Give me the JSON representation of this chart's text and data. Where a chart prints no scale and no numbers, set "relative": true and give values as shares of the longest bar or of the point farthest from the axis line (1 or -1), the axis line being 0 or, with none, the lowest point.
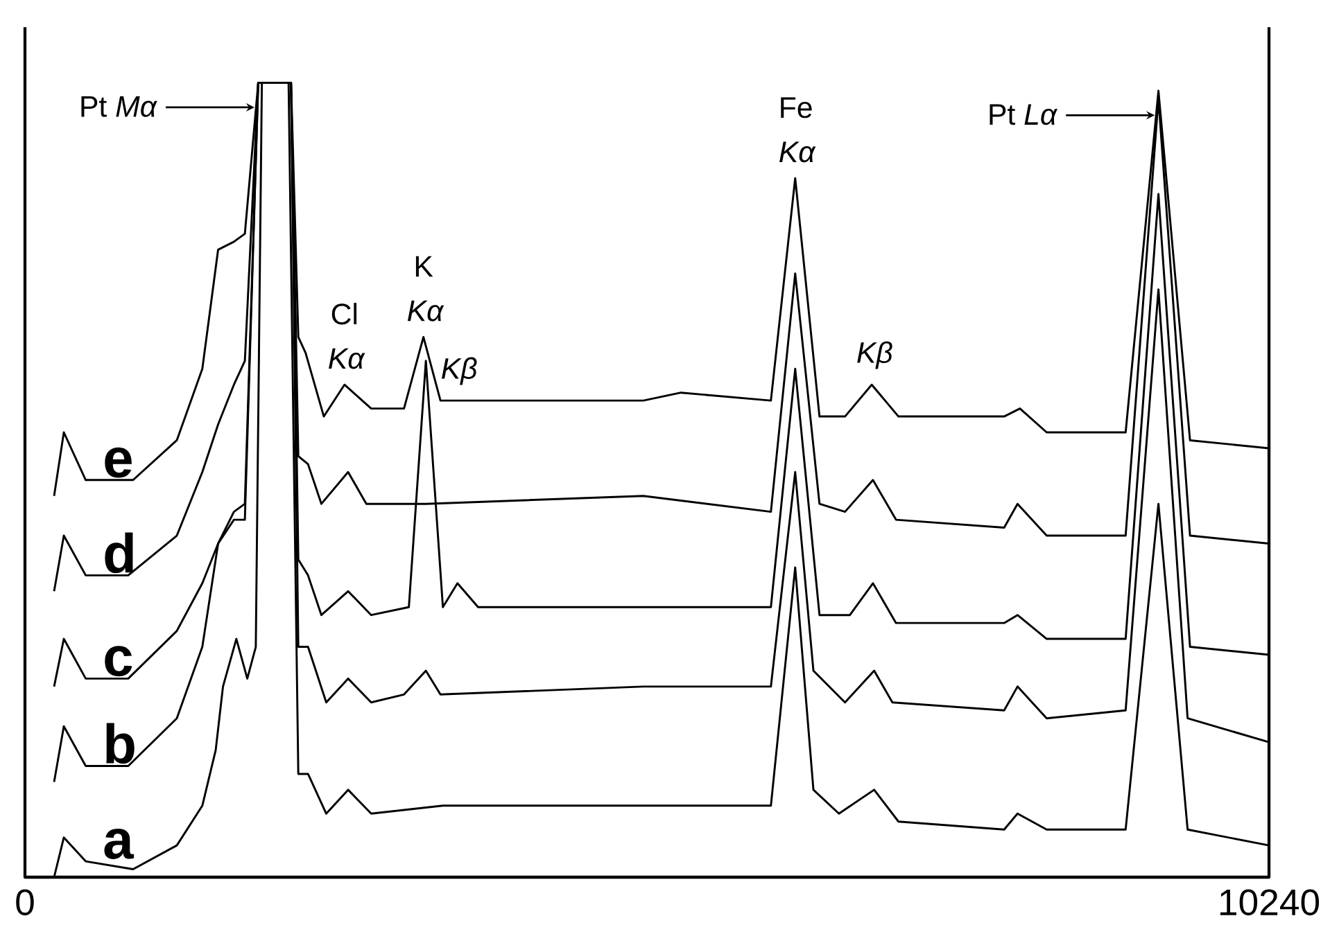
{
  "chart_data": {
    "type": "line",
    "relative": true,
    "xlim": [
      0,
      10240
    ],
    "xticks": [
      0,
      10240
    ],
    "series": [
      {
        "name": "a",
        "color": "#000000",
        "x": [
          240,
          320,
          500,
          890,
          1250,
          1460,
          1570,
          1630,
          1740,
          1830,
          1900,
          1950,
          2170,
          2250,
          2330,
          2480,
          2660,
          2850,
          3440,
          4430,
          5090,
          6140,
          6340,
          6490,
          6700,
          6990,
          7190,
          8060,
          8170,
          8410,
          9060,
          9330,
          9570,
          10240
        ],
        "values": [
          0.0,
          0.05,
          0.02,
          0.01,
          0.04,
          0.09,
          0.16,
          0.24,
          0.3,
          0.25,
          0.29,
          1.0,
          1.0,
          0.13,
          0.13,
          0.08,
          0.11,
          0.08,
          0.09,
          0.09,
          0.09,
          0.09,
          0.39,
          0.11,
          0.08,
          0.11,
          0.07,
          0.06,
          0.08,
          0.06,
          0.06,
          0.47,
          0.06,
          0.04
        ]
      },
      {
        "name": "b",
        "color": "#000000",
        "x": [
          240,
          320,
          500,
          850,
          1250,
          1460,
          1590,
          1720,
          1810,
          1920,
          2190,
          2250,
          2330,
          2480,
          2660,
          2850,
          3120,
          3300,
          3420,
          5090,
          6140,
          6340,
          6490,
          6750,
          6990,
          7140,
          8060,
          8170,
          8410,
          9060,
          9330,
          9570,
          10240
        ],
        "values": [
          0.12,
          0.19,
          0.14,
          0.14,
          0.2,
          0.29,
          0.42,
          0.45,
          0.45,
          1.0,
          1.0,
          0.29,
          0.29,
          0.22,
          0.25,
          0.22,
          0.23,
          0.26,
          0.23,
          0.24,
          0.24,
          0.51,
          0.26,
          0.22,
          0.26,
          0.22,
          0.21,
          0.24,
          0.2,
          0.21,
          0.74,
          0.2,
          0.17
        ]
      },
      {
        "name": "c",
        "color": "#000000",
        "x": [
          240,
          320,
          500,
          850,
          1250,
          1460,
          1590,
          1720,
          1810,
          1920,
          2190,
          2250,
          2330,
          2440,
          2660,
          2850,
          3160,
          3300,
          3440,
          3560,
          3730,
          5090,
          6140,
          6340,
          6540,
          6790,
          6980,
          7170,
          8060,
          8170,
          8410,
          9060,
          9330,
          9590,
          10240
        ],
        "values": [
          0.24,
          0.3,
          0.25,
          0.25,
          0.31,
          0.37,
          0.42,
          0.46,
          0.47,
          1.0,
          1.0,
          0.4,
          0.38,
          0.33,
          0.36,
          0.33,
          0.34,
          0.65,
          0.34,
          0.37,
          0.34,
          0.34,
          0.34,
          0.64,
          0.33,
          0.33,
          0.37,
          0.32,
          0.32,
          0.33,
          0.3,
          0.3,
          0.86,
          0.29,
          0.28
        ]
      },
      {
        "name": "d",
        "color": "#000000",
        "x": [
          240,
          320,
          500,
          850,
          1250,
          1460,
          1590,
          1720,
          1810,
          1920,
          2190,
          2250,
          2330,
          2440,
          2660,
          2810,
          3300,
          5090,
          6140,
          6340,
          6540,
          6750,
          6980,
          7170,
          8060,
          8170,
          8410,
          9060,
          9330,
          9590,
          10240
        ],
        "values": [
          0.36,
          0.43,
          0.38,
          0.38,
          0.43,
          0.51,
          0.57,
          0.62,
          0.65,
          1.0,
          1.0,
          0.53,
          0.52,
          0.47,
          0.51,
          0.47,
          0.47,
          0.48,
          0.46,
          0.76,
          0.47,
          0.46,
          0.5,
          0.45,
          0.44,
          0.47,
          0.43,
          0.43,
          0.98,
          0.43,
          0.42
        ]
      },
      {
        "name": "e",
        "color": "#000000",
        "x": [
          240,
          320,
          500,
          890,
          1250,
          1460,
          1590,
          1720,
          1810,
          1920,
          2190,
          2250,
          2310,
          2460,
          2630,
          2850,
          3120,
          3280,
          3420,
          5090,
          5400,
          6140,
          6340,
          6540,
          6750,
          6970,
          7190,
          8060,
          8190,
          8410,
          9060,
          9330,
          9590,
          10240
        ],
        "values": [
          0.48,
          0.56,
          0.5,
          0.5,
          0.55,
          0.64,
          0.79,
          0.8,
          0.81,
          1.0,
          1.0,
          0.68,
          0.66,
          0.58,
          0.62,
          0.59,
          0.59,
          0.68,
          0.6,
          0.6,
          0.61,
          0.6,
          0.88,
          0.58,
          0.58,
          0.62,
          0.58,
          0.58,
          0.59,
          0.56,
          0.56,
          0.99,
          0.55,
          0.54
        ]
      }
    ],
    "annotations": [
      "Pt *Mα*",
      {
        "text": "Cl *Kα*",
        "x": 2630,
        "y": 0.62
      },
      {
        "text": "K *Kα*",
        "x": 3280,
        "y": 0.68
      },
      {
        "text": "*Kβ*",
        "x": 3560,
        "y": 0.6
      },
      {
        "text": "Fe *Kα*",
        "x": 6340,
        "y": 0.88
      },
      {
        "text": "*Kβ*",
        "x": 6980,
        "y": 0.62
      },
      "Pt *Lα*"
    ]
  }
}
